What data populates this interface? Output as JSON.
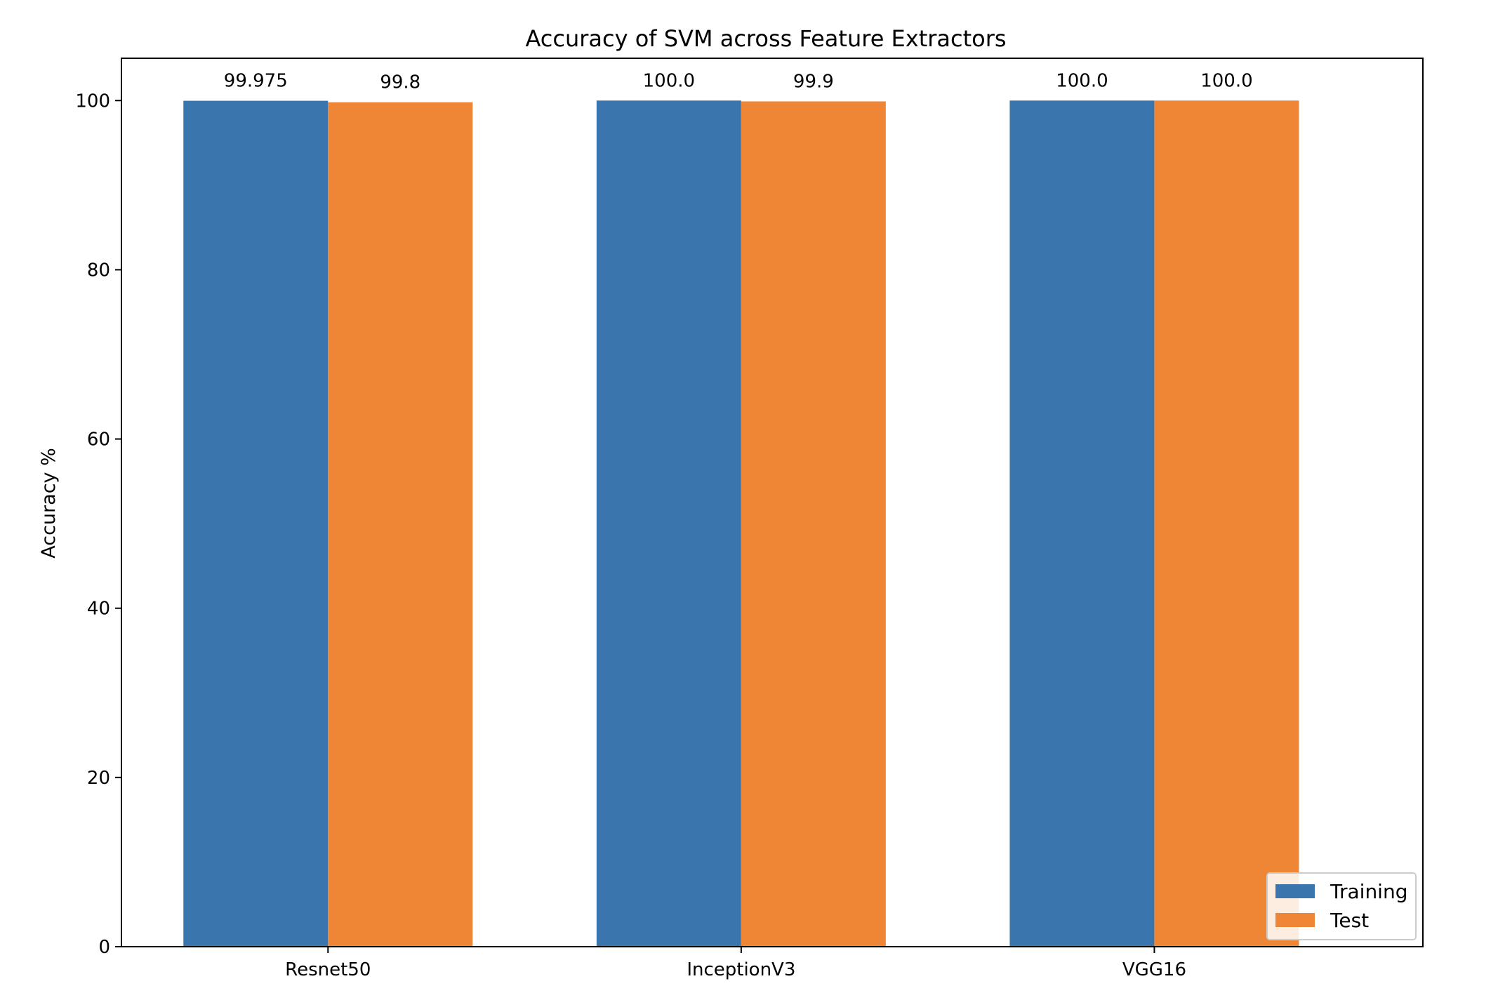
{
  "chart_data": {
    "type": "bar",
    "title": "Accuracy of SVM across Feature Extractors",
    "xlabel": "",
    "ylabel": "Accuracy %",
    "categories": [
      "Resnet50",
      "InceptionV3",
      "VGG16"
    ],
    "series": [
      {
        "name": "Training",
        "values": [
          99.975,
          100.0,
          100.0
        ],
        "labels": [
          "99.975",
          "100.0",
          "100.0"
        ],
        "color": "#3a75ad"
      },
      {
        "name": "Test",
        "values": [
          99.8,
          99.9,
          100.0
        ],
        "labels": [
          "99.8",
          "99.9",
          "100.0"
        ],
        "color": "#ef8636"
      }
    ],
    "ylim": [
      0,
      105
    ],
    "yticks": [
      0,
      20,
      40,
      60,
      80,
      100
    ],
    "ytick_labels": [
      "0",
      "20",
      "40",
      "60",
      "80",
      "100"
    ],
    "grid": false,
    "legend_position": "lower-right"
  }
}
